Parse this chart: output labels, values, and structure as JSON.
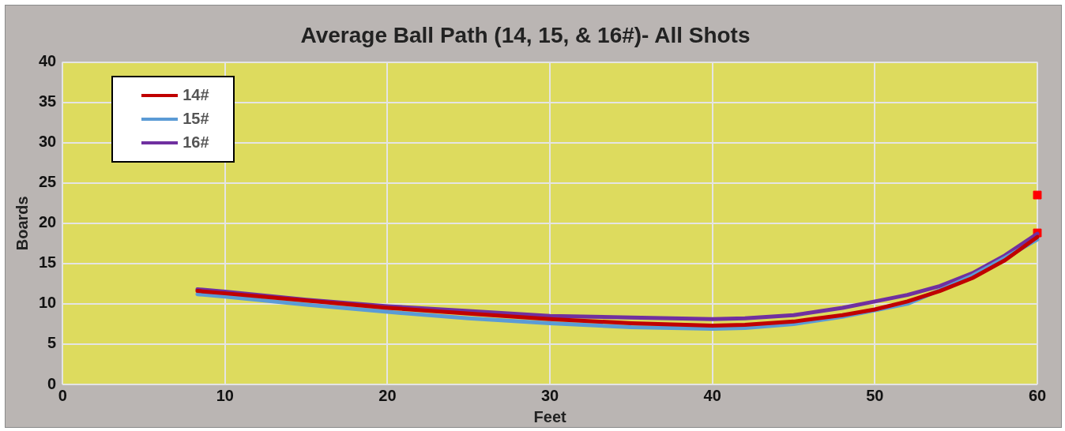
{
  "chart_data": {
    "type": "line",
    "title": "Average Ball Path (14, 15, & 16#)- All Shots",
    "xlabel": "Feet",
    "ylabel": "Boards",
    "xlim": [
      0,
      60
    ],
    "xticks": [
      0,
      10,
      20,
      30,
      40,
      50,
      60
    ],
    "ylim": [
      0,
      40
    ],
    "yticks": [
      0,
      5,
      10,
      15,
      20,
      25,
      30,
      35,
      40
    ],
    "grid": true,
    "legend": "top left",
    "marker": "none",
    "line_style": "solid",
    "x": [
      8.3,
      10,
      15,
      20,
      25,
      30,
      35,
      40,
      42,
      45,
      48,
      50,
      52,
      54,
      56,
      58,
      60
    ],
    "series": [
      {
        "name": "14#",
        "color": "#c00000",
        "values": [
          11.6,
          11.3,
          10.4,
          9.5,
          8.8,
          8.1,
          7.6,
          7.3,
          7.4,
          7.8,
          8.6,
          9.3,
          10.3,
          11.6,
          13.2,
          15.4,
          18.3
        ]
      },
      {
        "name": "15#",
        "color": "#5b9bd5",
        "values": [
          11.2,
          10.9,
          9.9,
          9.0,
          8.2,
          7.6,
          7.1,
          6.9,
          7.0,
          7.5,
          8.4,
          9.2,
          10.0,
          11.7,
          13.5,
          15.7,
          18.0
        ]
      },
      {
        "name": "16#",
        "color": "#7030a0",
        "values": [
          11.8,
          11.5,
          10.5,
          9.7,
          9.1,
          8.5,
          8.3,
          8.1,
          8.2,
          8.6,
          9.5,
          10.3,
          11.1,
          12.2,
          13.8,
          16.0,
          18.7
        ]
      },
      {
        "type": "scatter",
        "color": "#ff0000",
        "marker": "square",
        "x": [
          60,
          60
        ],
        "values": [
          23.5,
          18.8
        ]
      }
    ]
  }
}
